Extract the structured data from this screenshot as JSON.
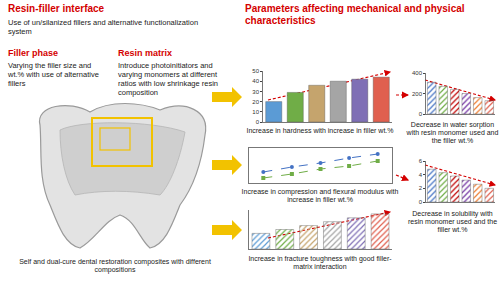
{
  "header_left": "Resin-filler interface",
  "interface_text": "Use of un/silanized fillers and alternative functionalization system",
  "filler_phase": {
    "title": "Filler  phase",
    "text": "Varying the filler size and wt.% with use of alternative fillers"
  },
  "resin_matrix": {
    "title": "Resin matrix",
    "text": "Introduce photoinitiators and varying monomers at different ratios with low shrinkage resin composition"
  },
  "tooth_caption": "Self and dual-cure dental restoration composites with different compositions",
  "header_right": "Parameters affecting mechanical and physical characteristics",
  "chart_data": [
    {
      "type": "bar",
      "title": "Increase in hardness with increase in filler wt.%",
      "categories": [
        null,
        null,
        null,
        null,
        null,
        null
      ],
      "values": [
        20,
        29,
        36,
        40,
        42,
        44
      ],
      "colors": [
        "#5b9bd5",
        "#70ad47",
        "#c5a46d",
        "#a5a5a5",
        "#7f6fb5",
        "#e0604f"
      ],
      "ylim": [
        0,
        50
      ],
      "yticks": [
        0,
        10,
        20,
        30,
        40,
        50
      ],
      "grid": false,
      "tick_labels": "y",
      "marker": "solid"
    },
    {
      "type": "line",
      "title": "Increase in compression and flexural modulus with increase in filler wt.%",
      "x": [
        10,
        20,
        30,
        40,
        50
      ],
      "series": [
        {
          "color": "#4472c4",
          "values": [
            2.1,
            2.6,
            3.0,
            3.5,
            3.9
          ],
          "line_style": "dash",
          "marker": "circle"
        },
        {
          "color": "#70ad47",
          "values": [
            1.5,
            1.9,
            2.4,
            2.7,
            3.2
          ],
          "line_style": "dash",
          "marker": "square"
        }
      ],
      "xlim": [
        5,
        55
      ],
      "ylim": [
        1,
        4.5
      ],
      "grid": false,
      "tick_labels": false
    },
    {
      "type": "bar",
      "title": "Increase in fracture toughness with good filler-matrix interaction",
      "categories": [
        null,
        null,
        null,
        null,
        null,
        null
      ],
      "values": [
        1.2,
        1.5,
        1.8,
        2.1,
        2.4,
        2.7
      ],
      "colors": [
        "#5b9bd5",
        "#70ad47",
        "#c5a46d",
        "#a5a5a5",
        "#7f6fb5",
        "#e0604f"
      ],
      "ylim": [
        0,
        3
      ],
      "grid": false,
      "tick_labels": false,
      "marker": "hatch"
    },
    {
      "type": "bar",
      "title": "Decrease in water sorption with resin monomer used and the filler wt.%",
      "categories": [
        null,
        null,
        null,
        null,
        null,
        null
      ],
      "values": [
        310,
        270,
        240,
        200,
        160,
        130
      ],
      "colors": [
        "#4472c4",
        "#70ad47",
        "#c00000",
        "#7030a0",
        "#ed7d31",
        "#e0604f"
      ],
      "ylim": [
        0,
        400
      ],
      "yticks": [
        0,
        200,
        400
      ],
      "grid": false,
      "tick_labels": "y",
      "marker": "hatch"
    },
    {
      "type": "bar",
      "title": "Decrease in solubility with resin monomer used and the filler wt.%",
      "categories": [
        null,
        null,
        null,
        null,
        null,
        null
      ],
      "values": [
        4.8,
        4.3,
        3.8,
        3.2,
        2.6,
        2.0
      ],
      "colors": [
        "#4472c4",
        "#70ad47",
        "#c00000",
        "#7030a0",
        "#ed7d31",
        "#e0604f"
      ],
      "ylim": [
        0,
        6
      ],
      "yticks": [
        0,
        2,
        4,
        6
      ],
      "grid": false,
      "tick_labels": "y",
      "marker": "hatch"
    }
  ]
}
